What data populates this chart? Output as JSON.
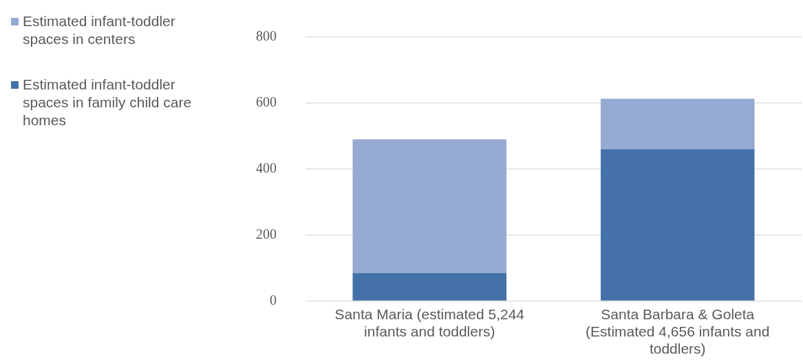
{
  "chart_data": {
    "type": "bar",
    "stacked": true,
    "categories": [
      "Santa Maria (estimated 5,244 infants and toddlers)",
      "Santa Barbara & Goleta (Estimated 4,656 infants and toddlers)"
    ],
    "series": [
      {
        "name": "Estimated infant-toddler spaces in family child care homes",
        "color": "#4472a8",
        "values": [
          85,
          460
        ]
      },
      {
        "name": "Estimated infant-toddler spaces in centers",
        "color": "#95aad2",
        "values": [
          405,
          153
        ]
      }
    ],
    "ylim": [
      0,
      800
    ],
    "yticks": [
      0,
      200,
      400,
      600,
      800
    ],
    "grid": "y",
    "legend": "left"
  }
}
